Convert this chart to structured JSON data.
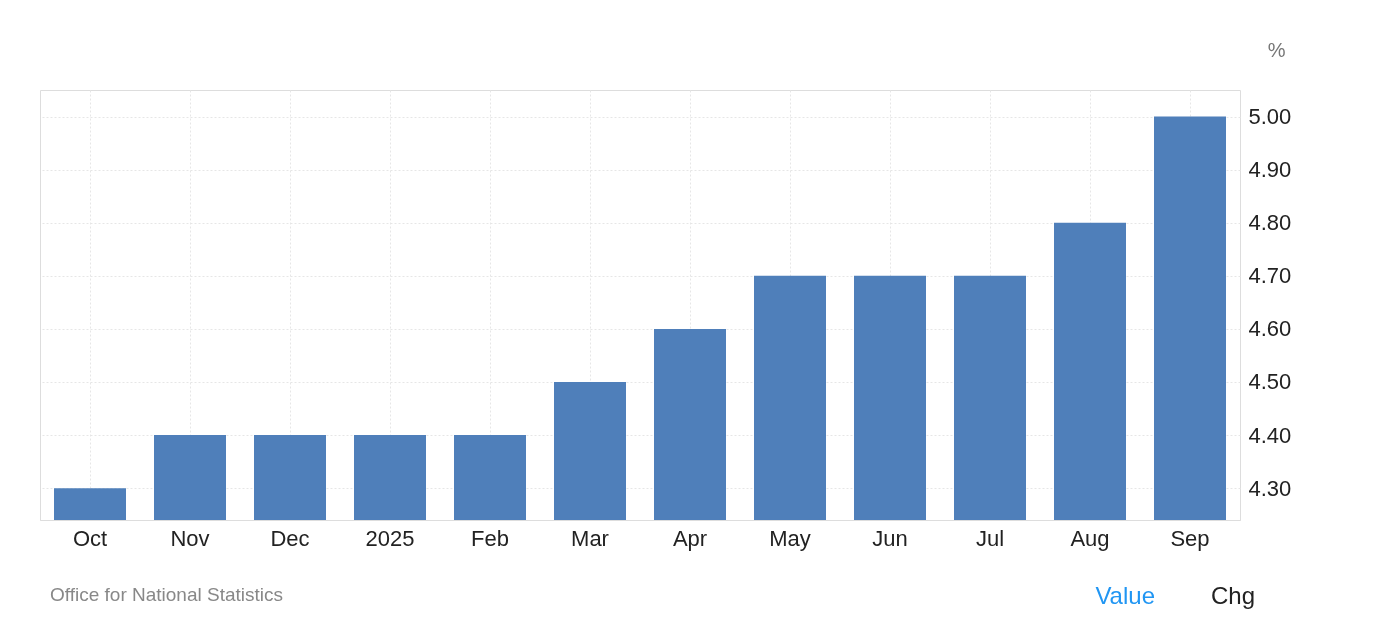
{
  "chart_data": {
    "type": "bar",
    "categories": [
      "Oct",
      "Nov",
      "Dec",
      "2025",
      "Feb",
      "Mar",
      "Apr",
      "May",
      "Jun",
      "Jul",
      "Aug",
      "Sep"
    ],
    "values": [
      4.3,
      4.4,
      4.4,
      4.4,
      4.4,
      4.5,
      4.6,
      4.7,
      4.7,
      4.7,
      4.8,
      5.0
    ],
    "color": "#4f7fba",
    "ylabel": "%",
    "ylim": [
      4.24,
      5.05
    ],
    "yticks": [
      {
        "value": 4.3,
        "label": "4.30"
      },
      {
        "value": 4.4,
        "label": "4.40"
      },
      {
        "value": 4.5,
        "label": "4.50"
      },
      {
        "value": 4.6,
        "label": "4.60"
      },
      {
        "value": 4.7,
        "label": "4.70"
      },
      {
        "value": 4.8,
        "label": "4.80"
      },
      {
        "value": 4.9,
        "label": "4.90"
      },
      {
        "value": 5.0,
        "label": "5.00"
      }
    ],
    "grid": true,
    "annotations": [
      "Office for National Statistics",
      "Value",
      "Chg"
    ]
  }
}
